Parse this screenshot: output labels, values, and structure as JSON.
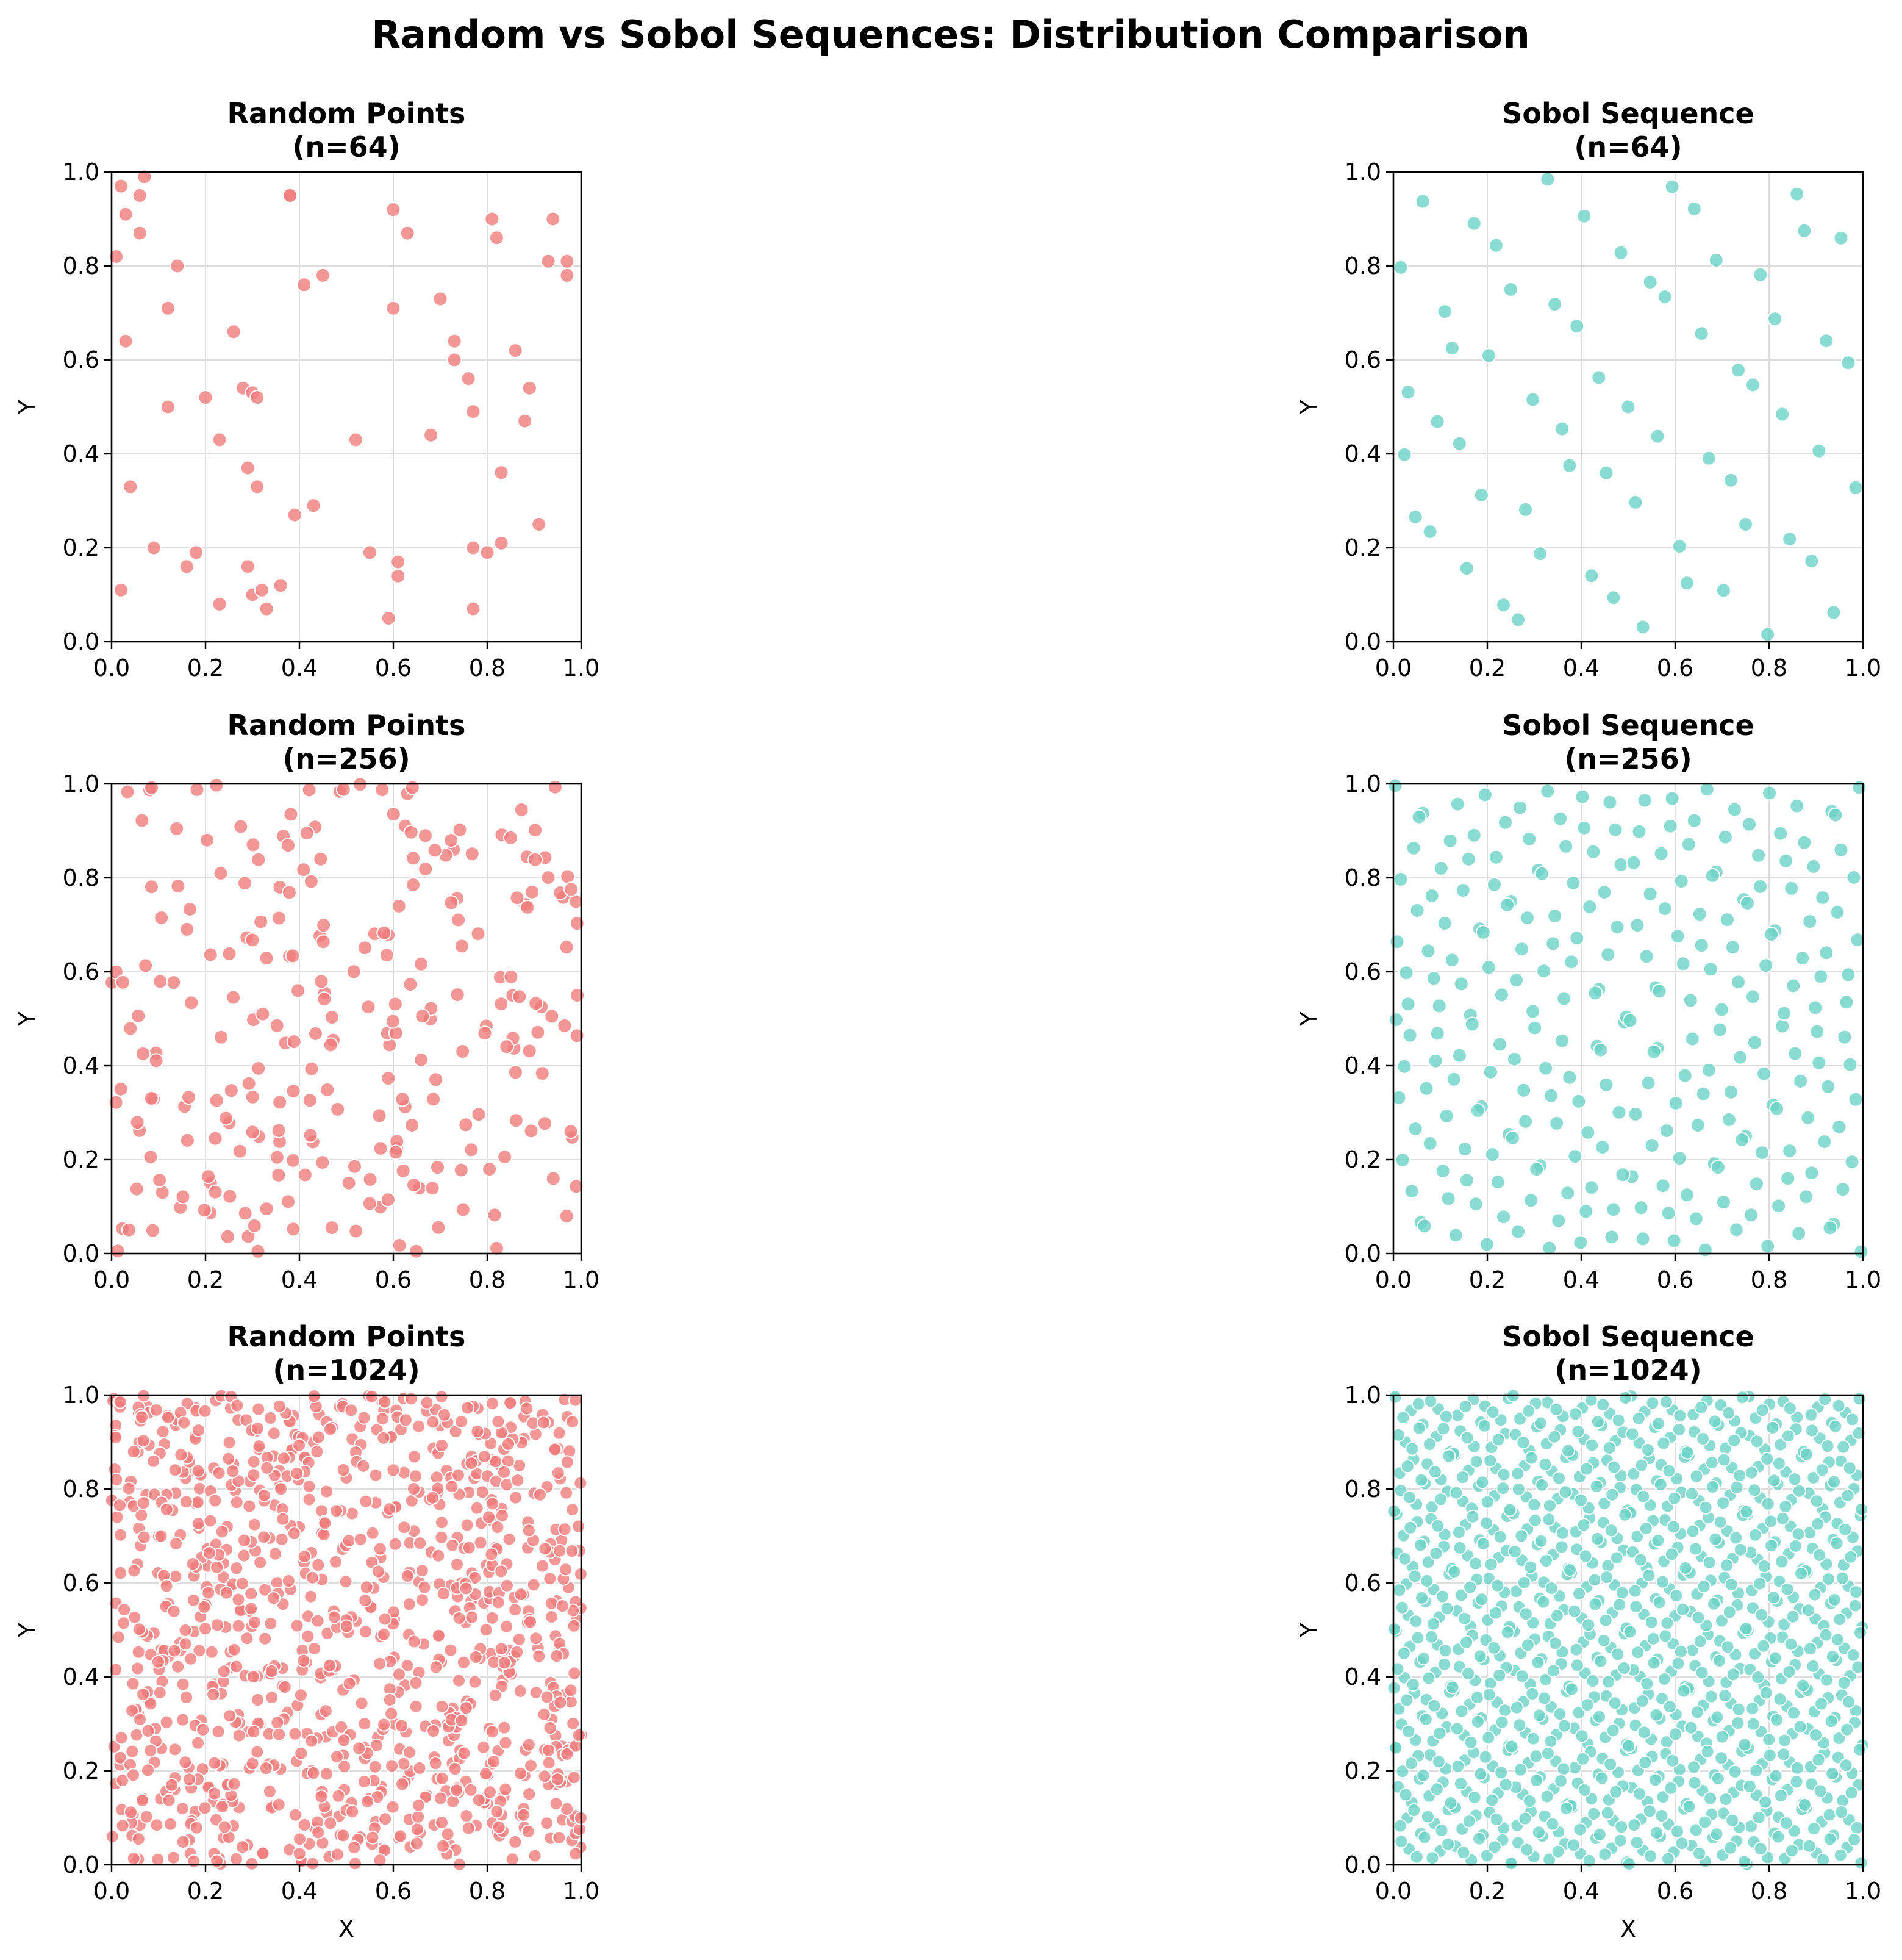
{
  "figure_title": "Random vs Sobol Sequences: Distribution Comparison",
  "colors": {
    "random": "#F07C7C",
    "sobol": "#6DD3C7",
    "marker_edge": "#ffffff",
    "grid": "#dddddd"
  },
  "chart_data": [
    {
      "type": "scatter",
      "kind": "random",
      "seed": 17,
      "n": 64,
      "title_line1": "Random Points",
      "title_line2": "(n=64)",
      "xlabel": "",
      "ylabel": "Y",
      "xlim": [
        0,
        1
      ],
      "ylim": [
        0,
        1
      ],
      "grid": true,
      "xticks": [
        "0.0",
        "0.2",
        "0.4",
        "0.6",
        "0.8",
        "1.0"
      ],
      "yticks": [
        "0.0",
        "0.2",
        "0.4",
        "0.6",
        "0.8",
        "1.0"
      ],
      "points": [
        [
          0.01,
          0.82
        ],
        [
          0.02,
          0.97
        ],
        [
          0.03,
          0.91
        ],
        [
          0.06,
          0.95
        ],
        [
          0.07,
          0.99
        ],
        [
          0.06,
          0.87
        ],
        [
          0.03,
          0.64
        ],
        [
          0.04,
          0.33
        ],
        [
          0.02,
          0.11
        ],
        [
          0.09,
          0.2
        ],
        [
          0.14,
          0.8
        ],
        [
          0.12,
          0.71
        ],
        [
          0.12,
          0.5
        ],
        [
          0.16,
          0.16
        ],
        [
          0.18,
          0.19
        ],
        [
          0.2,
          0.52
        ],
        [
          0.23,
          0.43
        ],
        [
          0.23,
          0.08
        ],
        [
          0.26,
          0.66
        ],
        [
          0.28,
          0.54
        ],
        [
          0.29,
          0.37
        ],
        [
          0.3,
          0.53
        ],
        [
          0.31,
          0.52
        ],
        [
          0.31,
          0.33
        ],
        [
          0.29,
          0.16
        ],
        [
          0.3,
          0.1
        ],
        [
          0.32,
          0.11
        ],
        [
          0.33,
          0.07
        ],
        [
          0.36,
          0.12
        ],
        [
          0.38,
          0.95
        ],
        [
          0.41,
          0.76
        ],
        [
          0.39,
          0.27
        ],
        [
          0.43,
          0.29
        ],
        [
          0.45,
          0.78
        ],
        [
          0.52,
          0.43
        ],
        [
          0.55,
          0.19
        ],
        [
          0.6,
          0.92
        ],
        [
          0.6,
          0.71
        ],
        [
          0.63,
          0.87
        ],
        [
          0.61,
          0.17
        ],
        [
          0.61,
          0.14
        ],
        [
          0.59,
          0.05
        ],
        [
          0.68,
          0.44
        ],
        [
          0.7,
          0.73
        ],
        [
          0.73,
          0.64
        ],
        [
          0.73,
          0.6
        ],
        [
          0.76,
          0.56
        ],
        [
          0.77,
          0.49
        ],
        [
          0.77,
          0.2
        ],
        [
          0.77,
          0.07
        ],
        [
          0.8,
          0.19
        ],
        [
          0.81,
          0.9
        ],
        [
          0.82,
          0.86
        ],
        [
          0.83,
          0.36
        ],
        [
          0.83,
          0.21
        ],
        [
          0.86,
          0.62
        ],
        [
          0.89,
          0.54
        ],
        [
          0.88,
          0.47
        ],
        [
          0.91,
          0.25
        ],
        [
          0.93,
          0.81
        ],
        [
          0.94,
          0.9
        ],
        [
          0.97,
          0.81
        ],
        [
          0.97,
          0.78
        ],
        [
          0.38,
          0.95
        ]
      ]
    },
    {
      "type": "scatter",
      "kind": "sobol",
      "n": 64,
      "title_line1": "Sobol Sequence",
      "title_line2": "(n=64)",
      "xlabel": "",
      "ylabel": "Y",
      "xlim": [
        0,
        1
      ],
      "ylim": [
        0,
        1
      ],
      "grid": true,
      "xticks": [
        "0.0",
        "0.2",
        "0.4",
        "0.6",
        "0.8",
        "1.0"
      ],
      "yticks": [
        "0.0",
        "0.2",
        "0.4",
        "0.6",
        "0.8",
        "1.0"
      ]
    },
    {
      "type": "scatter",
      "kind": "random",
      "seed": 29,
      "n": 256,
      "title_line1": "Random Points",
      "title_line2": "(n=256)",
      "xlabel": "",
      "ylabel": "Y",
      "xlim": [
        0,
        1
      ],
      "ylim": [
        0,
        1
      ],
      "grid": true,
      "xticks": [
        "0.0",
        "0.2",
        "0.4",
        "0.6",
        "0.8",
        "1.0"
      ],
      "yticks": [
        "0.0",
        "0.2",
        "0.4",
        "0.6",
        "0.8",
        "1.0"
      ]
    },
    {
      "type": "scatter",
      "kind": "sobol",
      "n": 256,
      "title_line1": "Sobol Sequence",
      "title_line2": "(n=256)",
      "xlabel": "",
      "ylabel": "Y",
      "xlim": [
        0,
        1
      ],
      "ylim": [
        0,
        1
      ],
      "grid": true,
      "xticks": [
        "0.0",
        "0.2",
        "0.4",
        "0.6",
        "0.8",
        "1.0"
      ],
      "yticks": [
        "0.0",
        "0.2",
        "0.4",
        "0.6",
        "0.8",
        "1.0"
      ]
    },
    {
      "type": "scatter",
      "kind": "random",
      "seed": 43,
      "n": 1024,
      "title_line1": "Random Points",
      "title_line2": "(n=1024)",
      "xlabel": "X",
      "ylabel": "Y",
      "xlim": [
        0,
        1
      ],
      "ylim": [
        0,
        1
      ],
      "grid": true,
      "xticks": [
        "0.0",
        "0.2",
        "0.4",
        "0.6",
        "0.8",
        "1.0"
      ],
      "yticks": [
        "0.0",
        "0.2",
        "0.4",
        "0.6",
        "0.8",
        "1.0"
      ]
    },
    {
      "type": "scatter",
      "kind": "sobol",
      "n": 1024,
      "title_line1": "Sobol Sequence",
      "title_line2": "(n=1024)",
      "xlabel": "X",
      "ylabel": "Y",
      "xlim": [
        0,
        1
      ],
      "ylim": [
        0,
        1
      ],
      "grid": true,
      "xticks": [
        "0.0",
        "0.2",
        "0.4",
        "0.6",
        "0.8",
        "1.0"
      ],
      "yticks": [
        "0.0",
        "0.2",
        "0.4",
        "0.6",
        "0.8",
        "1.0"
      ]
    }
  ]
}
